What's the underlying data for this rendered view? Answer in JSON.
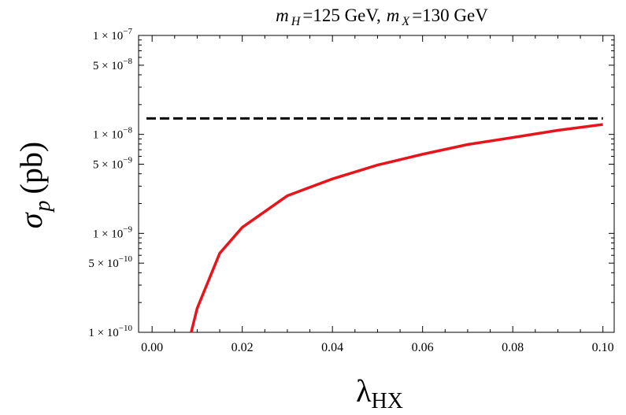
{
  "chart_data": {
    "type": "line",
    "title": {
      "m1_symbol": "m",
      "m1_sub": "H",
      "m1_value": "=125 GeV,",
      "m2_symbol": "m",
      "m2_sub": "X",
      "m2_value": "=130 GeV"
    },
    "xlabel": {
      "symbol": "λ",
      "sub": "HX"
    },
    "ylabel": {
      "symbol": "σ",
      "sub": "p",
      "unit": "(pb)"
    },
    "xlim": [
      -0.003,
      0.1025
    ],
    "ylim": [
      1e-10,
      1e-07
    ],
    "yscale": "log",
    "grid": false,
    "legend": "none",
    "x_ticks": [
      {
        "value": 0.0,
        "label": "0.00"
      },
      {
        "value": 0.02,
        "label": "0.02"
      },
      {
        "value": 0.04,
        "label": "0.04"
      },
      {
        "value": 0.06,
        "label": "0.06"
      },
      {
        "value": 0.08,
        "label": "0.08"
      },
      {
        "value": 0.1,
        "label": "0.10"
      }
    ],
    "y_ticks": [
      {
        "value": 1e-07,
        "mantissa": "1",
        "exponent": "−7"
      },
      {
        "value": 5e-08,
        "mantissa": "5",
        "exponent": "−8"
      },
      {
        "value": 1e-08,
        "mantissa": "1",
        "exponent": "−8"
      },
      {
        "value": 5e-09,
        "mantissa": "5",
        "exponent": "−9"
      },
      {
        "value": 1e-09,
        "mantissa": "1",
        "exponent": "−9"
      },
      {
        "value": 5e-10,
        "mantissa": "5",
        "exponent": "−10"
      },
      {
        "value": 1e-10,
        "mantissa": "1",
        "exponent": "−10"
      }
    ],
    "series": [
      {
        "style": "solid",
        "color": "#e8141b",
        "x": [
          0.00867,
          0.01,
          0.015,
          0.02,
          0.03,
          0.04,
          0.05,
          0.06,
          0.07,
          0.08,
          0.09,
          0.1
        ],
        "y": [
          1e-10,
          1.75e-10,
          6.3e-10,
          1.15e-09,
          2.4e-09,
          3.55e-09,
          4.9e-09,
          6.3e-09,
          7.9e-09,
          9.3e-09,
          1.1e-08,
          1.26e-08
        ]
      },
      {
        "style": "dashed",
        "color": "#000000",
        "x": [
          -0.003,
          0.1
        ],
        "y": [
          1.45e-08,
          1.45e-08
        ]
      }
    ]
  }
}
